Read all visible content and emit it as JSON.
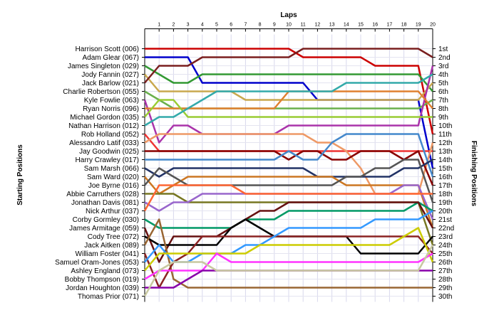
{
  "chart_data": {
    "type": "line",
    "title": "",
    "xlabel": "Laps",
    "ylabel_left": "Starting Positions",
    "ylabel_right": "Finishing Positions",
    "x": [
      0,
      1,
      2,
      3,
      4,
      5,
      6,
      7,
      8,
      9,
      10,
      11,
      12,
      13,
      14,
      15,
      16,
      17,
      18,
      19,
      20
    ],
    "x_tick_labels": [
      "1",
      "2",
      "3",
      "4",
      "5",
      "6",
      "7",
      "8",
      "9",
      "10",
      "11",
      "12",
      "13",
      "14",
      "15",
      "16",
      "17",
      "18",
      "19",
      "20"
    ],
    "ylim": [
      1,
      30
    ],
    "grid": true,
    "starting_grid": [
      "Harrison Scott (006)",
      "Adam Glear (067)",
      "James Singleton (029)",
      "Jody Fannin (027)",
      "Jack Barlow (021)",
      "Charlie Robertson (055)",
      "Kyle Fowlie (063)",
      "Ryan Norris (096)",
      "Michael Gordon (035)",
      "Nathan Harrison (012)",
      "Rob Holland (052)",
      "Alessandro Latif (033)",
      "Jay Goodwin (025)",
      "Harry Crawley (017)",
      "Sam Marsh (066)",
      "Sam Ward (020)",
      "Joe Byrne (016)",
      "Abbie Carruthers (028)",
      "Jonathan Davis (081)",
      "Nick Arthur (037)",
      "Corby Gormley (030)",
      "James Armitage (059)",
      "Cody Tree (072)",
      "Jack Aitken (089)",
      "William Foster (041)",
      "Samuel Oram-Jones (053)",
      "Ashley England (073)",
      "Bobby Thompson (019)",
      "Jordan Houghton (039)",
      "Thomas Prior (071)"
    ],
    "finishing_positions": [
      "1st",
      "2nd",
      "3rd",
      "4th",
      "5th",
      "6th",
      "7th",
      "8th",
      "9th",
      "10th",
      "11th",
      "12th",
      "13th",
      "14th",
      "15th",
      "16th",
      "17th",
      "18th",
      "19th",
      "20th",
      "21st",
      "22nd",
      "23rd",
      "24th",
      "25th",
      "26th",
      "27th",
      "28th",
      "29th",
      "30th"
    ],
    "series": [
      {
        "color": "#cc0000",
        "values": [
          1,
          1,
          1,
          1,
          1,
          1,
          1,
          1,
          1,
          1,
          1,
          2,
          2,
          2,
          2,
          2,
          3,
          3,
          3,
          3,
          11
        ]
      },
      {
        "color": "#0000cc",
        "values": [
          2,
          2,
          2,
          2,
          5,
          5,
          5,
          5,
          5,
          5,
          5,
          5,
          7,
          7,
          7,
          7,
          7,
          7,
          7,
          7,
          15
        ]
      },
      {
        "color": "#339933",
        "values": [
          3,
          4,
          5,
          5,
          4,
          4,
          4,
          4,
          4,
          4,
          4,
          4,
          4,
          4,
          4,
          4,
          4,
          4,
          4,
          4,
          6
        ]
      },
      {
        "color": "#c9a84e",
        "values": [
          4,
          6,
          6,
          6,
          6,
          6,
          6,
          7,
          7,
          7,
          7,
          7,
          7,
          7,
          7,
          7,
          7,
          7,
          7,
          7,
          5
        ]
      },
      {
        "color": "#7a1f1f",
        "values": [
          5,
          3,
          3,
          3,
          2,
          2,
          2,
          2,
          2,
          2,
          2,
          1,
          1,
          1,
          1,
          1,
          1,
          1,
          1,
          1,
          2
        ]
      },
      {
        "color": "#6ab04c",
        "values": [
          6,
          7,
          8,
          8,
          8,
          8,
          8,
          8,
          8,
          8,
          8,
          8,
          8,
          8,
          8,
          8,
          8,
          8,
          8,
          8,
          7
        ]
      },
      {
        "color": "#aa33aa",
        "values": [
          7,
          12,
          10,
          10,
          11,
          11,
          11,
          11,
          11,
          11,
          10,
          10,
          10,
          10,
          10,
          10,
          10,
          10,
          10,
          10,
          3
        ]
      },
      {
        "color": "#e08030",
        "values": [
          8,
          8,
          8,
          8,
          8,
          8,
          8,
          8,
          8,
          8,
          6,
          6,
          6,
          6,
          6,
          6,
          6,
          6,
          6,
          6,
          8
        ]
      },
      {
        "color": "#99cc33",
        "values": [
          9,
          7,
          7,
          9,
          9,
          9,
          9,
          9,
          9,
          9,
          9,
          9,
          9,
          9,
          9,
          9,
          9,
          9,
          9,
          9,
          9
        ]
      },
      {
        "color": "#33aaaa",
        "values": [
          10,
          9,
          9,
          8,
          7,
          6,
          6,
          6,
          6,
          6,
          6,
          6,
          6,
          6,
          5,
          5,
          5,
          5,
          5,
          5,
          4
        ]
      },
      {
        "color": "#ee3333",
        "values": [
          11,
          13,
          13,
          13,
          13,
          13,
          13,
          13,
          13,
          13,
          13,
          13,
          13,
          13,
          13,
          13,
          13,
          13,
          13,
          13,
          13
        ]
      },
      {
        "color": "#ee9966",
        "values": [
          12,
          11,
          11,
          11,
          11,
          11,
          11,
          11,
          11,
          11,
          11,
          11,
          12,
          12,
          13,
          15,
          18,
          18,
          18,
          18,
          12
        ]
      },
      {
        "color": "#880000",
        "values": [
          13,
          13,
          13,
          13,
          13,
          13,
          13,
          13,
          13,
          13,
          14,
          13,
          13,
          14,
          14,
          13,
          13,
          13,
          14,
          13,
          17
        ]
      },
      {
        "color": "#4488cc",
        "values": [
          14,
          14,
          14,
          14,
          14,
          14,
          14,
          14,
          14,
          14,
          13,
          14,
          14,
          12,
          11,
          11,
          11,
          11,
          11,
          11,
          16
        ]
      },
      {
        "color": "#223366",
        "values": [
          15,
          16,
          15,
          15,
          15,
          15,
          15,
          15,
          15,
          15,
          15,
          15,
          16,
          16,
          16,
          16,
          16,
          16,
          15,
          15,
          14
        ]
      },
      {
        "color": "#cc7722",
        "values": [
          16,
          18,
          17,
          16,
          16,
          16,
          16,
          16,
          16,
          16,
          16,
          16,
          16,
          16,
          17,
          17,
          17,
          17,
          17,
          17,
          22
        ]
      },
      {
        "color": "#555555",
        "values": [
          17,
          15,
          16,
          17,
          17,
          17,
          17,
          17,
          17,
          17,
          17,
          17,
          17,
          17,
          16,
          16,
          15,
          15,
          14,
          14,
          19
        ]
      },
      {
        "color": "#777722",
        "values": [
          18,
          18,
          18,
          19,
          19,
          19,
          19,
          19,
          19,
          19,
          19,
          19,
          19,
          19,
          19,
          19,
          19,
          19,
          19,
          19,
          24
        ]
      },
      {
        "color": "#9966cc",
        "values": [
          19,
          20,
          19,
          19,
          18,
          18,
          18,
          18,
          18,
          18,
          18,
          18,
          18,
          18,
          18,
          18,
          18,
          18,
          17,
          17,
          21
        ]
      },
      {
        "color": "#ff6633",
        "values": [
          20,
          17,
          17,
          17,
          17,
          17,
          17,
          18,
          18,
          18,
          18,
          18,
          18,
          18,
          18,
          18,
          18,
          18,
          18,
          18,
          18
        ]
      },
      {
        "color": "#009966",
        "values": [
          21,
          22,
          22,
          22,
          22,
          22,
          22,
          21,
          21,
          21,
          20,
          20,
          20,
          20,
          20,
          20,
          20,
          20,
          20,
          19,
          20
        ]
      },
      {
        "color": "#661111",
        "values": [
          22,
          26,
          23,
          23,
          23,
          23,
          22,
          21,
          20,
          20,
          19,
          19,
          19,
          19,
          19,
          19,
          19,
          19,
          19,
          19,
          22
        ]
      },
      {
        "color": "#000000",
        "values": [
          23,
          24,
          24,
          24,
          24,
          24,
          22,
          21,
          22,
          23,
          23,
          23,
          23,
          23,
          23,
          25,
          25,
          25,
          25,
          25,
          23
        ]
      },
      {
        "color": "#996633",
        "values": [
          24,
          21,
          28,
          29,
          29,
          29,
          29,
          29,
          29,
          29,
          29,
          29,
          29,
          29,
          29,
          29,
          29,
          29,
          29,
          29,
          29
        ]
      },
      {
        "color": "#8b2323",
        "values": [
          25,
          29,
          26,
          25,
          23,
          23,
          23,
          23,
          23,
          23,
          23,
          23,
          23,
          23,
          23,
          23,
          23,
          23,
          23,
          23,
          25
        ]
      },
      {
        "color": "#3399ff",
        "values": [
          26,
          24,
          26,
          26,
          25,
          25,
          25,
          24,
          24,
          23,
          22,
          22,
          22,
          22,
          22,
          22,
          21,
          21,
          21,
          21,
          20
        ]
      },
      {
        "color": "#cccc00",
        "values": [
          27,
          25,
          25,
          25,
          25,
          25,
          25,
          25,
          24,
          24,
          24,
          24,
          24,
          24,
          24,
          24,
          24,
          24,
          23,
          22,
          26
        ]
      },
      {
        "color": "#ff33ff",
        "values": [
          28,
          27,
          27,
          27,
          27,
          25,
          26,
          26,
          26,
          26,
          26,
          26,
          26,
          26,
          26,
          26,
          26,
          26,
          26,
          26,
          25
        ]
      },
      {
        "color": "#8800aa",
        "values": [
          29,
          29,
          29,
          28,
          27,
          27,
          27,
          27,
          27,
          27,
          27,
          27,
          27,
          27,
          27,
          27,
          27,
          27,
          27,
          27,
          27
        ]
      },
      {
        "color": "#c8c8a0",
        "values": [
          30,
          27,
          26,
          26,
          26,
          27,
          27,
          27,
          27,
          27,
          27,
          27,
          27,
          27,
          27,
          27,
          27,
          27,
          27,
          27,
          24
        ]
      }
    ]
  }
}
